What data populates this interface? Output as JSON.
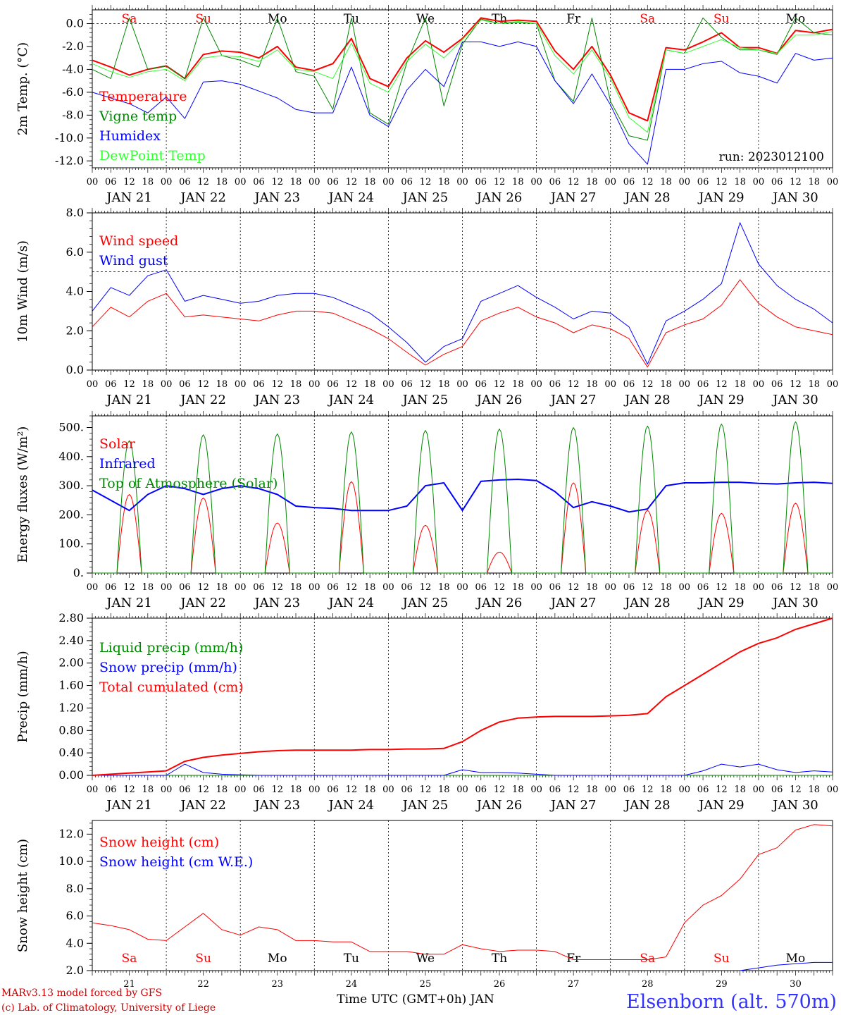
{
  "run_label": "run: 2023012100",
  "colors": {
    "temperature": "#ff0000",
    "vigne": "#008800",
    "humidex": "#0000ff",
    "dewpoint": "#33ff33",
    "wind_speed": "#ff0000",
    "wind_gust": "#0000ff",
    "solar": "#ff0000",
    "infrared": "#0000ff",
    "toa": "#008800",
    "liquid": "#008800",
    "snow_precip": "#0000ff",
    "cumulated": "#ff0000",
    "snow_height": "#ff0000",
    "snow_we": "#0000ff",
    "weekend": "#ff0000",
    "weekday": "#000000",
    "station": "#3333ff",
    "credit": "#cc0000"
  },
  "days": [
    {
      "date": "JAN 21",
      "num": "21",
      "dow": "Sa",
      "weekend": true
    },
    {
      "date": "JAN 22",
      "num": "22",
      "dow": "Su",
      "weekend": true
    },
    {
      "date": "JAN 23",
      "num": "23",
      "dow": "Mo",
      "weekend": false
    },
    {
      "date": "JAN 24",
      "num": "24",
      "dow": "Tu",
      "weekend": false
    },
    {
      "date": "JAN 25",
      "num": "25",
      "dow": "We",
      "weekend": false
    },
    {
      "date": "JAN 26",
      "num": "26",
      "dow": "Th",
      "weekend": false
    },
    {
      "date": "JAN 27",
      "num": "27",
      "dow": "Fr",
      "weekend": false
    },
    {
      "date": "JAN 28",
      "num": "28",
      "dow": "Sa",
      "weekend": true
    },
    {
      "date": "JAN 29",
      "num": "29",
      "dow": "Su",
      "weekend": true
    },
    {
      "date": "JAN 30",
      "num": "30",
      "dow": "Mo",
      "weekend": false
    }
  ],
  "hour_labels": [
    "00",
    "06",
    "12",
    "18"
  ],
  "final_hour_label": "00",
  "footer": {
    "xlabel": "Time UTC (GMT+0h) JAN",
    "credit_line1": "MARv3.13 model forced by GFS",
    "credit_line2": "(c) Lab. of Climatology, University of Liege",
    "station": "Elsenborn (alt. 570m)"
  },
  "chart_data": [
    {
      "id": "temperature",
      "type": "line",
      "ylabel": "2m Temp. (°C)",
      "ylim": [
        -12.6,
        1.2
      ],
      "yticks": [
        "0.0",
        "-2.0",
        "-4.0",
        "-6.0",
        "-8.0",
        "-10.0",
        "-12.0"
      ],
      "ytick_values": [
        0,
        -2,
        -4,
        -6,
        -8,
        -10,
        -12
      ],
      "refline": 0,
      "grid_vertical_dotted": true,
      "legend_placement": "left",
      "x_hours": [
        0,
        6,
        12,
        18,
        24,
        30,
        36,
        42,
        48,
        54,
        60,
        66,
        72,
        78,
        84,
        90,
        96,
        102,
        108,
        114,
        120,
        126,
        132,
        138,
        144,
        150,
        156,
        162,
        168,
        174,
        180,
        186,
        192,
        198,
        204,
        210,
        216,
        222,
        228,
        234,
        240
      ],
      "series": [
        {
          "name": "Temperature",
          "color_key": "temperature",
          "width": 2,
          "values": [
            -3.2,
            -3.8,
            -4.5,
            -4.0,
            -3.7,
            -4.8,
            -2.7,
            -2.4,
            -2.5,
            -3.0,
            -2.0,
            -3.8,
            -4.1,
            -3.5,
            -1.3,
            -4.8,
            -5.5,
            -3.0,
            -1.5,
            -2.5,
            -1.3,
            0.5,
            0.2,
            0.3,
            0.2,
            -2.4,
            -4.0,
            -2.0,
            -4.5,
            -7.8,
            -8.5,
            -2.1,
            -2.3,
            -1.6,
            -0.8,
            -2.1,
            -2.1,
            -2.6,
            -0.6,
            -0.8,
            -0.5
          ]
        },
        {
          "name": "Vigne temp",
          "color_key": "vigne",
          "width": 1,
          "values": [
            -4.0,
            -4.8,
            0.5,
            -4.0,
            -3.7,
            -4.8,
            0.5,
            -2.8,
            -3.2,
            -3.8,
            0.5,
            -4.2,
            -4.6,
            -7.5,
            0.5,
            -7.8,
            -8.8,
            -3.4,
            0.5,
            -7.2,
            -1.8,
            0.4,
            0.0,
            0.1,
            0.0,
            -5.0,
            -6.8,
            0.5,
            -6.8,
            -9.8,
            -10.2,
            -2.3,
            -2.6,
            0.5,
            -1.2,
            -2.3,
            -2.3,
            -2.7,
            0.5,
            -0.8,
            -1.0
          ]
        },
        {
          "name": "Humidex",
          "color_key": "humidex",
          "width": 1,
          "values": [
            -6.0,
            -6.5,
            -7.0,
            -7.8,
            -6.4,
            -8.3,
            -5.1,
            -5.0,
            -5.3,
            -5.9,
            -6.5,
            -7.5,
            -7.8,
            -7.8,
            -3.8,
            -8.0,
            -9.0,
            -5.8,
            -4.0,
            -5.5,
            -1.6,
            -1.6,
            -2.0,
            -1.6,
            -2.0,
            -5.0,
            -7.0,
            -4.4,
            -7.1,
            -10.5,
            -12.3,
            -4.0,
            -4.0,
            -3.5,
            -3.3,
            -4.3,
            -4.6,
            -5.2,
            -2.6,
            -3.2,
            -3.0
          ]
        },
        {
          "name": "DewPoint Temp",
          "color_key": "dewpoint",
          "width": 1,
          "values": [
            -3.5,
            -4.2,
            -4.7,
            -4.2,
            -4.0,
            -5.0,
            -3.0,
            -2.8,
            -2.9,
            -3.3,
            -2.3,
            -4.0,
            -4.2,
            -4.8,
            -1.7,
            -5.2,
            -6.0,
            -3.3,
            -1.8,
            -3.0,
            -1.4,
            0.3,
            0.0,
            0.2,
            0.0,
            -2.8,
            -4.4,
            -2.3,
            -4.8,
            -8.2,
            -9.5,
            -2.3,
            -2.6,
            -2.0,
            -1.4,
            -2.1,
            -2.3,
            -2.6,
            -1.0,
            -1.0,
            -0.7
          ]
        }
      ]
    },
    {
      "id": "wind",
      "type": "line",
      "ylabel": "10m Wind (m/s)",
      "ylim": [
        0,
        8
      ],
      "yticks": [
        "0.0",
        "2.0",
        "4.0",
        "6.0",
        "8.0"
      ],
      "ytick_values": [
        0,
        2,
        4,
        6,
        8
      ],
      "refline": 5,
      "grid_vertical_dotted": true,
      "legend_placement": "top-left",
      "x_hours": [
        0,
        6,
        12,
        18,
        24,
        30,
        36,
        42,
        48,
        54,
        60,
        66,
        72,
        78,
        84,
        90,
        96,
        102,
        108,
        114,
        120,
        126,
        132,
        138,
        144,
        150,
        156,
        162,
        168,
        174,
        180,
        186,
        192,
        198,
        204,
        210,
        216,
        222,
        228,
        234,
        240
      ],
      "series": [
        {
          "name": "Wind speed",
          "color_key": "wind_speed",
          "width": 1,
          "values": [
            2.2,
            3.2,
            2.7,
            3.5,
            3.9,
            2.7,
            2.8,
            2.7,
            2.6,
            2.5,
            2.8,
            3.0,
            3.0,
            2.9,
            2.5,
            2.1,
            1.6,
            0.9,
            0.25,
            0.8,
            1.2,
            2.5,
            2.9,
            3.2,
            2.7,
            2.4,
            1.9,
            2.3,
            2.1,
            1.6,
            0.15,
            1.9,
            2.3,
            2.6,
            3.3,
            4.6,
            3.4,
            2.7,
            2.2,
            2.0,
            1.8
          ]
        },
        {
          "name": "Wind gust",
          "color_key": "wind_gust",
          "width": 1,
          "values": [
            3.0,
            4.2,
            3.8,
            4.8,
            5.1,
            3.5,
            3.8,
            3.6,
            3.4,
            3.5,
            3.8,
            3.9,
            3.9,
            3.7,
            3.3,
            2.9,
            2.2,
            1.4,
            0.4,
            1.2,
            1.6,
            3.5,
            3.9,
            4.3,
            3.7,
            3.2,
            2.6,
            3.0,
            2.9,
            2.2,
            0.3,
            2.5,
            3.0,
            3.6,
            4.4,
            7.5,
            5.4,
            4.3,
            3.6,
            3.1,
            2.4
          ]
        }
      ]
    },
    {
      "id": "energy",
      "type": "line",
      "ylabel": "Energy fluxes (W/m²)",
      "ylim": [
        0,
        540
      ],
      "yticks": [
        "0.",
        "100.",
        "200.",
        "300.",
        "400.",
        "500."
      ],
      "ytick_values": [
        0,
        100,
        200,
        300,
        400,
        500
      ],
      "refline": null,
      "grid_vertical_dotted": true,
      "legend_placement": "left",
      "solar_peaks": [
        270,
        258,
        172,
        314,
        164,
        72,
        310,
        215,
        205,
        240
      ],
      "toa_peaks": [
        455,
        475,
        478,
        485,
        490,
        495,
        500,
        505,
        512,
        520
      ],
      "daylight_hours": [
        8,
        16
      ],
      "x_hours": [
        0,
        6,
        12,
        18,
        24,
        30,
        36,
        42,
        48,
        54,
        60,
        66,
        72,
        78,
        84,
        90,
        96,
        102,
        108,
        114,
        120,
        126,
        132,
        138,
        144,
        150,
        156,
        162,
        168,
        174,
        180,
        186,
        192,
        198,
        204,
        210,
        216,
        222,
        228,
        234,
        240
      ],
      "series": [
        {
          "name": "Solar",
          "color_key": "solar",
          "width": 1,
          "derived": "solar_peaks"
        },
        {
          "name": "Infrared",
          "color_key": "infrared",
          "width": 2,
          "values": [
            285,
            250,
            215,
            270,
            300,
            290,
            270,
            290,
            300,
            290,
            270,
            230,
            225,
            222,
            215,
            215,
            215,
            230,
            300,
            310,
            215,
            315,
            320,
            322,
            318,
            280,
            225,
            245,
            230,
            210,
            220,
            300,
            310,
            310,
            312,
            312,
            308,
            306,
            310,
            312,
            308
          ]
        },
        {
          "name": "Top of Atmosphere (Solar)",
          "color_key": "toa",
          "width": 1,
          "derived": "toa_peaks"
        }
      ]
    },
    {
      "id": "precip",
      "type": "line",
      "ylabel": "Precip (mm/h)",
      "ylim": [
        0,
        2.8
      ],
      "yticks": [
        "0.00",
        "0.40",
        "0.80",
        "1.20",
        "1.60",
        "2.00",
        "2.40",
        "2.80"
      ],
      "ytick_values": [
        0,
        0.4,
        0.8,
        1.2,
        1.6,
        2.0,
        2.4,
        2.8
      ],
      "refline": null,
      "grid_vertical_dotted": true,
      "legend_placement": "top-left",
      "x_hours": [
        0,
        6,
        12,
        18,
        24,
        30,
        36,
        42,
        48,
        54,
        60,
        66,
        72,
        78,
        84,
        90,
        96,
        102,
        108,
        114,
        120,
        126,
        132,
        138,
        144,
        150,
        156,
        162,
        168,
        174,
        180,
        186,
        192,
        198,
        204,
        210,
        216,
        222,
        228,
        234,
        240
      ],
      "series": [
        {
          "name": "Liquid precip (mm/h)",
          "color_key": "liquid",
          "width": 1,
          "values": [
            0,
            0,
            0,
            0,
            0,
            0,
            0,
            0,
            0,
            0,
            0,
            0,
            0,
            0,
            0,
            0,
            0,
            0,
            0,
            0,
            0,
            0,
            0,
            0,
            0,
            0,
            0,
            0,
            0,
            0,
            0,
            0,
            0,
            0,
            0,
            0,
            0,
            0,
            0,
            0,
            0
          ]
        },
        {
          "name": "Snow precip (mm/h)",
          "color_key": "snow_precip",
          "width": 1,
          "values": [
            0,
            0,
            0,
            0,
            0,
            0.2,
            0.05,
            0.02,
            0.01,
            0,
            0,
            0,
            0,
            0,
            0,
            0,
            0,
            0,
            0,
            0,
            0.1,
            0.05,
            0.05,
            0.04,
            0.02,
            0,
            0,
            0,
            0,
            0,
            0,
            0,
            0,
            0.08,
            0.2,
            0.15,
            0.2,
            0.1,
            0.05,
            0.08,
            0.06
          ]
        },
        {
          "name": "Total cumulated (cm)",
          "color_key": "cumulated",
          "width": 2,
          "values": [
            0.0,
            0.02,
            0.04,
            0.06,
            0.08,
            0.25,
            0.32,
            0.36,
            0.39,
            0.42,
            0.44,
            0.45,
            0.45,
            0.45,
            0.45,
            0.46,
            0.46,
            0.47,
            0.47,
            0.48,
            0.6,
            0.8,
            0.95,
            1.02,
            1.04,
            1.05,
            1.05,
            1.05,
            1.06,
            1.07,
            1.1,
            1.4,
            1.6,
            1.8,
            2.0,
            2.2,
            2.35,
            2.45,
            2.6,
            2.7,
            2.8
          ]
        }
      ]
    },
    {
      "id": "snow",
      "type": "line",
      "ylabel": "Snow height (cm)",
      "ylim": [
        2.0,
        13.0
      ],
      "yticks": [
        "2.0",
        "4.0",
        "6.0",
        "8.0",
        "10.0",
        "12.0"
      ],
      "ytick_values": [
        2,
        4,
        6,
        8,
        10,
        12
      ],
      "refline": null,
      "grid_vertical_dotted": true,
      "legend_placement": "top-left",
      "x_hours": [
        0,
        6,
        12,
        18,
        24,
        30,
        36,
        42,
        48,
        54,
        60,
        66,
        72,
        78,
        84,
        90,
        96,
        102,
        108,
        114,
        120,
        126,
        132,
        138,
        144,
        150,
        156,
        162,
        168,
        174,
        180,
        186,
        192,
        198,
        204,
        210,
        216,
        222,
        228,
        234,
        240
      ],
      "series": [
        {
          "name": "Snow height (cm)",
          "color_key": "snow_height",
          "width": 1,
          "values": [
            5.5,
            5.3,
            5.0,
            4.3,
            4.2,
            5.2,
            6.2,
            5.0,
            4.6,
            5.2,
            5.0,
            4.2,
            4.2,
            4.1,
            4.1,
            3.4,
            3.4,
            3.4,
            3.2,
            3.2,
            3.9,
            3.6,
            3.4,
            3.5,
            3.5,
            3.4,
            2.8,
            2.8,
            2.8,
            2.8,
            2.8,
            3.0,
            5.5,
            6.8,
            7.5,
            8.7,
            10.5,
            11.0,
            12.3,
            12.7,
            12.6
          ]
        },
        {
          "name": "Snow height (cm W.E.)",
          "color_key": "snow_we",
          "width": 1,
          "values": [
            null,
            null,
            null,
            null,
            null,
            null,
            null,
            null,
            null,
            null,
            null,
            null,
            null,
            null,
            null,
            null,
            null,
            null,
            null,
            null,
            null,
            null,
            null,
            null,
            null,
            null,
            null,
            null,
            null,
            null,
            null,
            null,
            null,
            null,
            null,
            2.0,
            2.2,
            2.4,
            2.5,
            2.6,
            2.6
          ]
        }
      ]
    }
  ],
  "panels": [
    {
      "id": "temperature",
      "top_dow": true,
      "run": true,
      "bottom_dow": false
    },
    {
      "id": "wind",
      "top_dow": false,
      "run": false,
      "bottom_dow": false
    },
    {
      "id": "energy",
      "top_dow": false,
      "run": false,
      "bottom_dow": false
    },
    {
      "id": "precip",
      "top_dow": false,
      "run": false,
      "bottom_dow": false
    },
    {
      "id": "snow",
      "top_dow": false,
      "run": false,
      "bottom_dow": true
    }
  ]
}
